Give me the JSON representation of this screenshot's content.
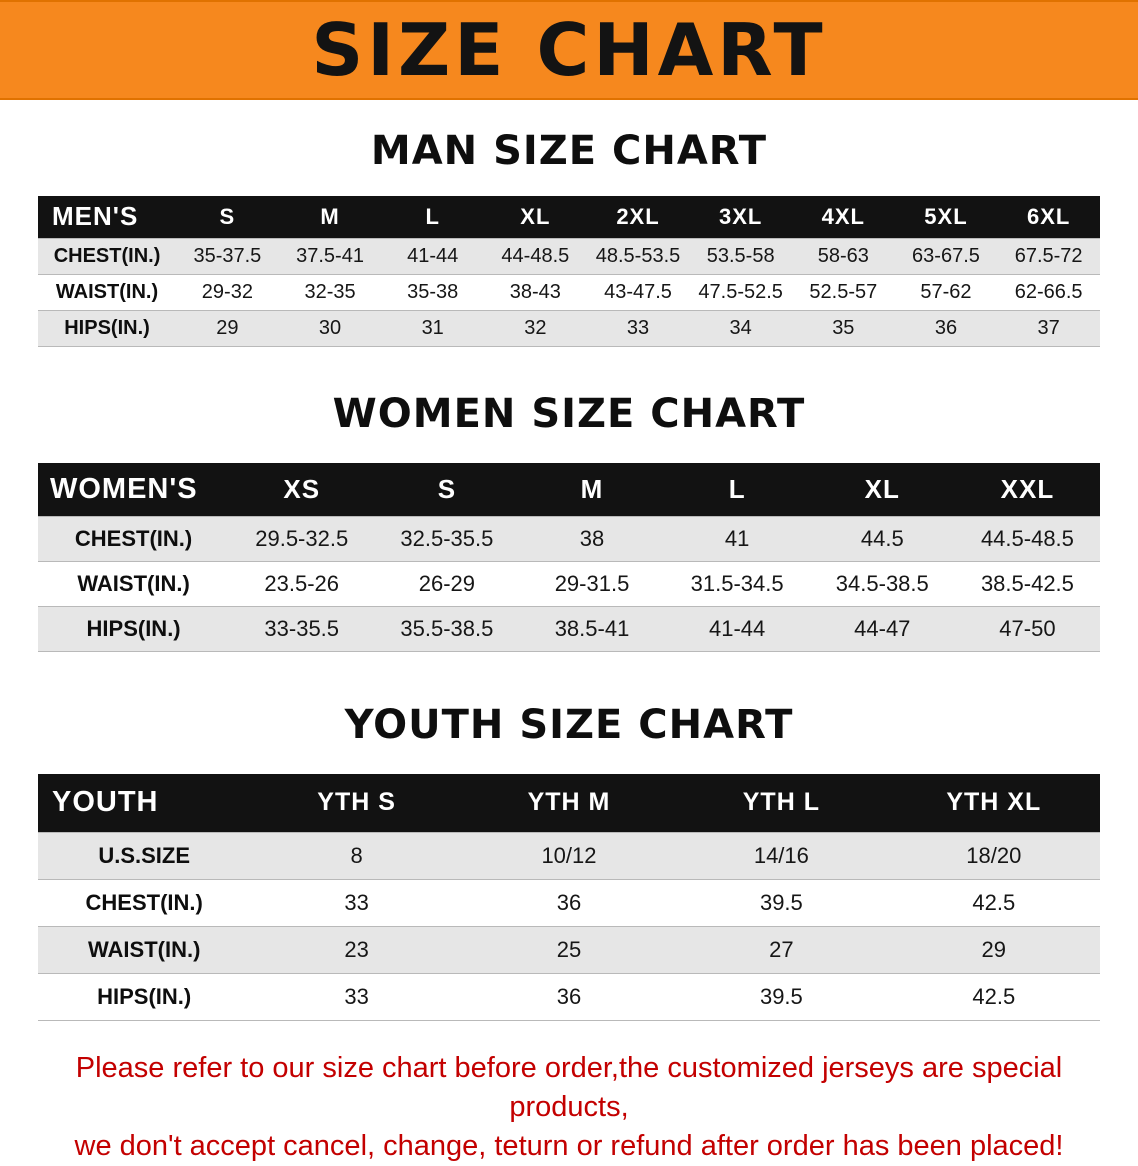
{
  "banner": {
    "title": "SIZE CHART"
  },
  "colors": {
    "banner_bg": "#f6881e",
    "banner_text": "#131313",
    "table_header_bg": "#121212",
    "table_header_text": "#ffffff",
    "row_shaded_bg": "#e6e6e6",
    "disclaimer_text": "#c30000"
  },
  "chart_data": [
    {
      "type": "table",
      "title": "MAN SIZE CHART",
      "columns": [
        "MEN'S",
        "S",
        "M",
        "L",
        "XL",
        "2XL",
        "3XL",
        "4XL",
        "5XL",
        "6XL"
      ],
      "rows": [
        [
          "CHEST(IN.)",
          "35-37.5",
          "37.5-41",
          "41-44",
          "44-48.5",
          "48.5-53.5",
          "53.5-58",
          "58-63",
          "63-67.5",
          "67.5-72"
        ],
        [
          "WAIST(IN.)",
          "29-32",
          "32-35",
          "35-38",
          "38-43",
          "43-47.5",
          "47.5-52.5",
          "52.5-57",
          "57-62",
          "62-66.5"
        ],
        [
          "HIPS(IN.)",
          "29",
          "30",
          "31",
          "32",
          "33",
          "34",
          "35",
          "36",
          "37"
        ]
      ]
    },
    {
      "type": "table",
      "title": "WOMEN SIZE CHART",
      "columns": [
        "WOMEN'S",
        "XS",
        "S",
        "M",
        "L",
        "XL",
        "XXL"
      ],
      "rows": [
        [
          "CHEST(IN.)",
          "29.5-32.5",
          "32.5-35.5",
          "38",
          "41",
          "44.5",
          "44.5-48.5"
        ],
        [
          "WAIST(IN.)",
          "23.5-26",
          "26-29",
          "29-31.5",
          "31.5-34.5",
          "34.5-38.5",
          "38.5-42.5"
        ],
        [
          "HIPS(IN.)",
          "33-35.5",
          "35.5-38.5",
          "38.5-41",
          "41-44",
          "44-47",
          "47-50"
        ]
      ]
    },
    {
      "type": "table",
      "title": "YOUTH SIZE CHART",
      "columns": [
        "YOUTH",
        "YTH S",
        "YTH M",
        "YTH L",
        "YTH XL"
      ],
      "rows": [
        [
          "U.S.SIZE",
          "8",
          "10/12",
          "14/16",
          "18/20"
        ],
        [
          "CHEST(IN.)",
          "33",
          "36",
          "39.5",
          "42.5"
        ],
        [
          "WAIST(IN.)",
          "23",
          "25",
          "27",
          "29"
        ],
        [
          "HIPS(IN.)",
          "33",
          "36",
          "39.5",
          "42.5"
        ]
      ]
    }
  ],
  "footer": {
    "lines": [
      "Please refer to our size chart before order,the customized jerseys are special products,",
      "we don't accept cancel, change, teturn or refund after order has been placed!"
    ]
  }
}
